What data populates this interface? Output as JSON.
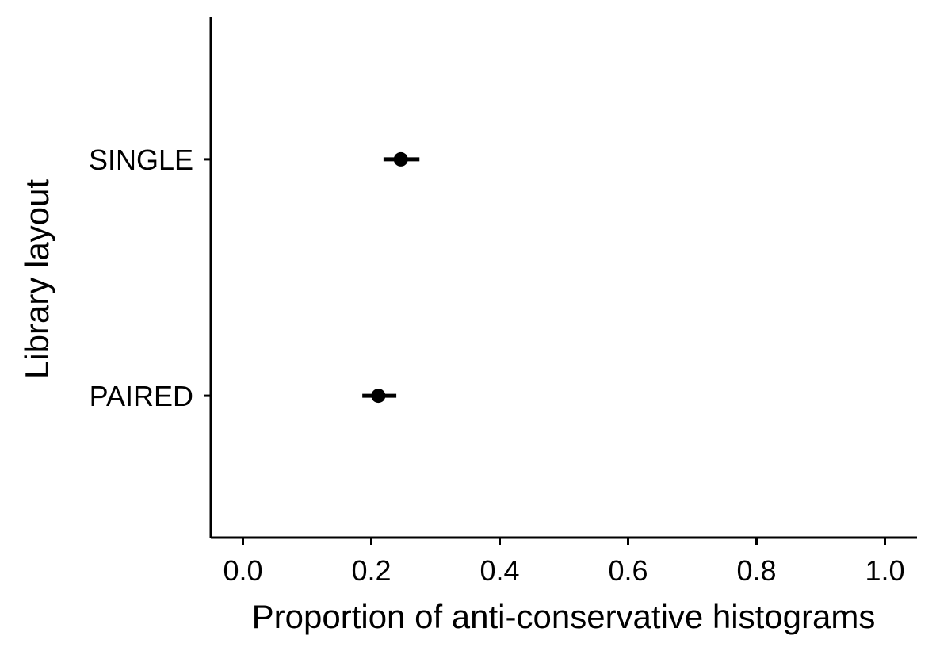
{
  "chart_data": {
    "type": "scatter",
    "title": "",
    "xlabel": "Proportion of anti-conservative histograms",
    "ylabel": "Library layout",
    "xlim": [
      -0.05,
      1.05
    ],
    "x_ticks": [
      {
        "value": 0.0,
        "label": "0.0"
      },
      {
        "value": 0.2,
        "label": "0.2"
      },
      {
        "value": 0.4,
        "label": "0.4"
      },
      {
        "value": 0.6,
        "label": "0.6"
      },
      {
        "value": 0.8,
        "label": "0.8"
      },
      {
        "value": 1.0,
        "label": "1.0"
      }
    ],
    "categories": [
      "SINGLE",
      "PAIRED"
    ],
    "points": [
      {
        "category": "SINGLE",
        "estimate": 0.246,
        "lower": 0.219,
        "upper": 0.275
      },
      {
        "category": "PAIRED",
        "estimate": 0.211,
        "lower": 0.186,
        "upper": 0.239
      }
    ],
    "grid": false,
    "legend": "none"
  }
}
